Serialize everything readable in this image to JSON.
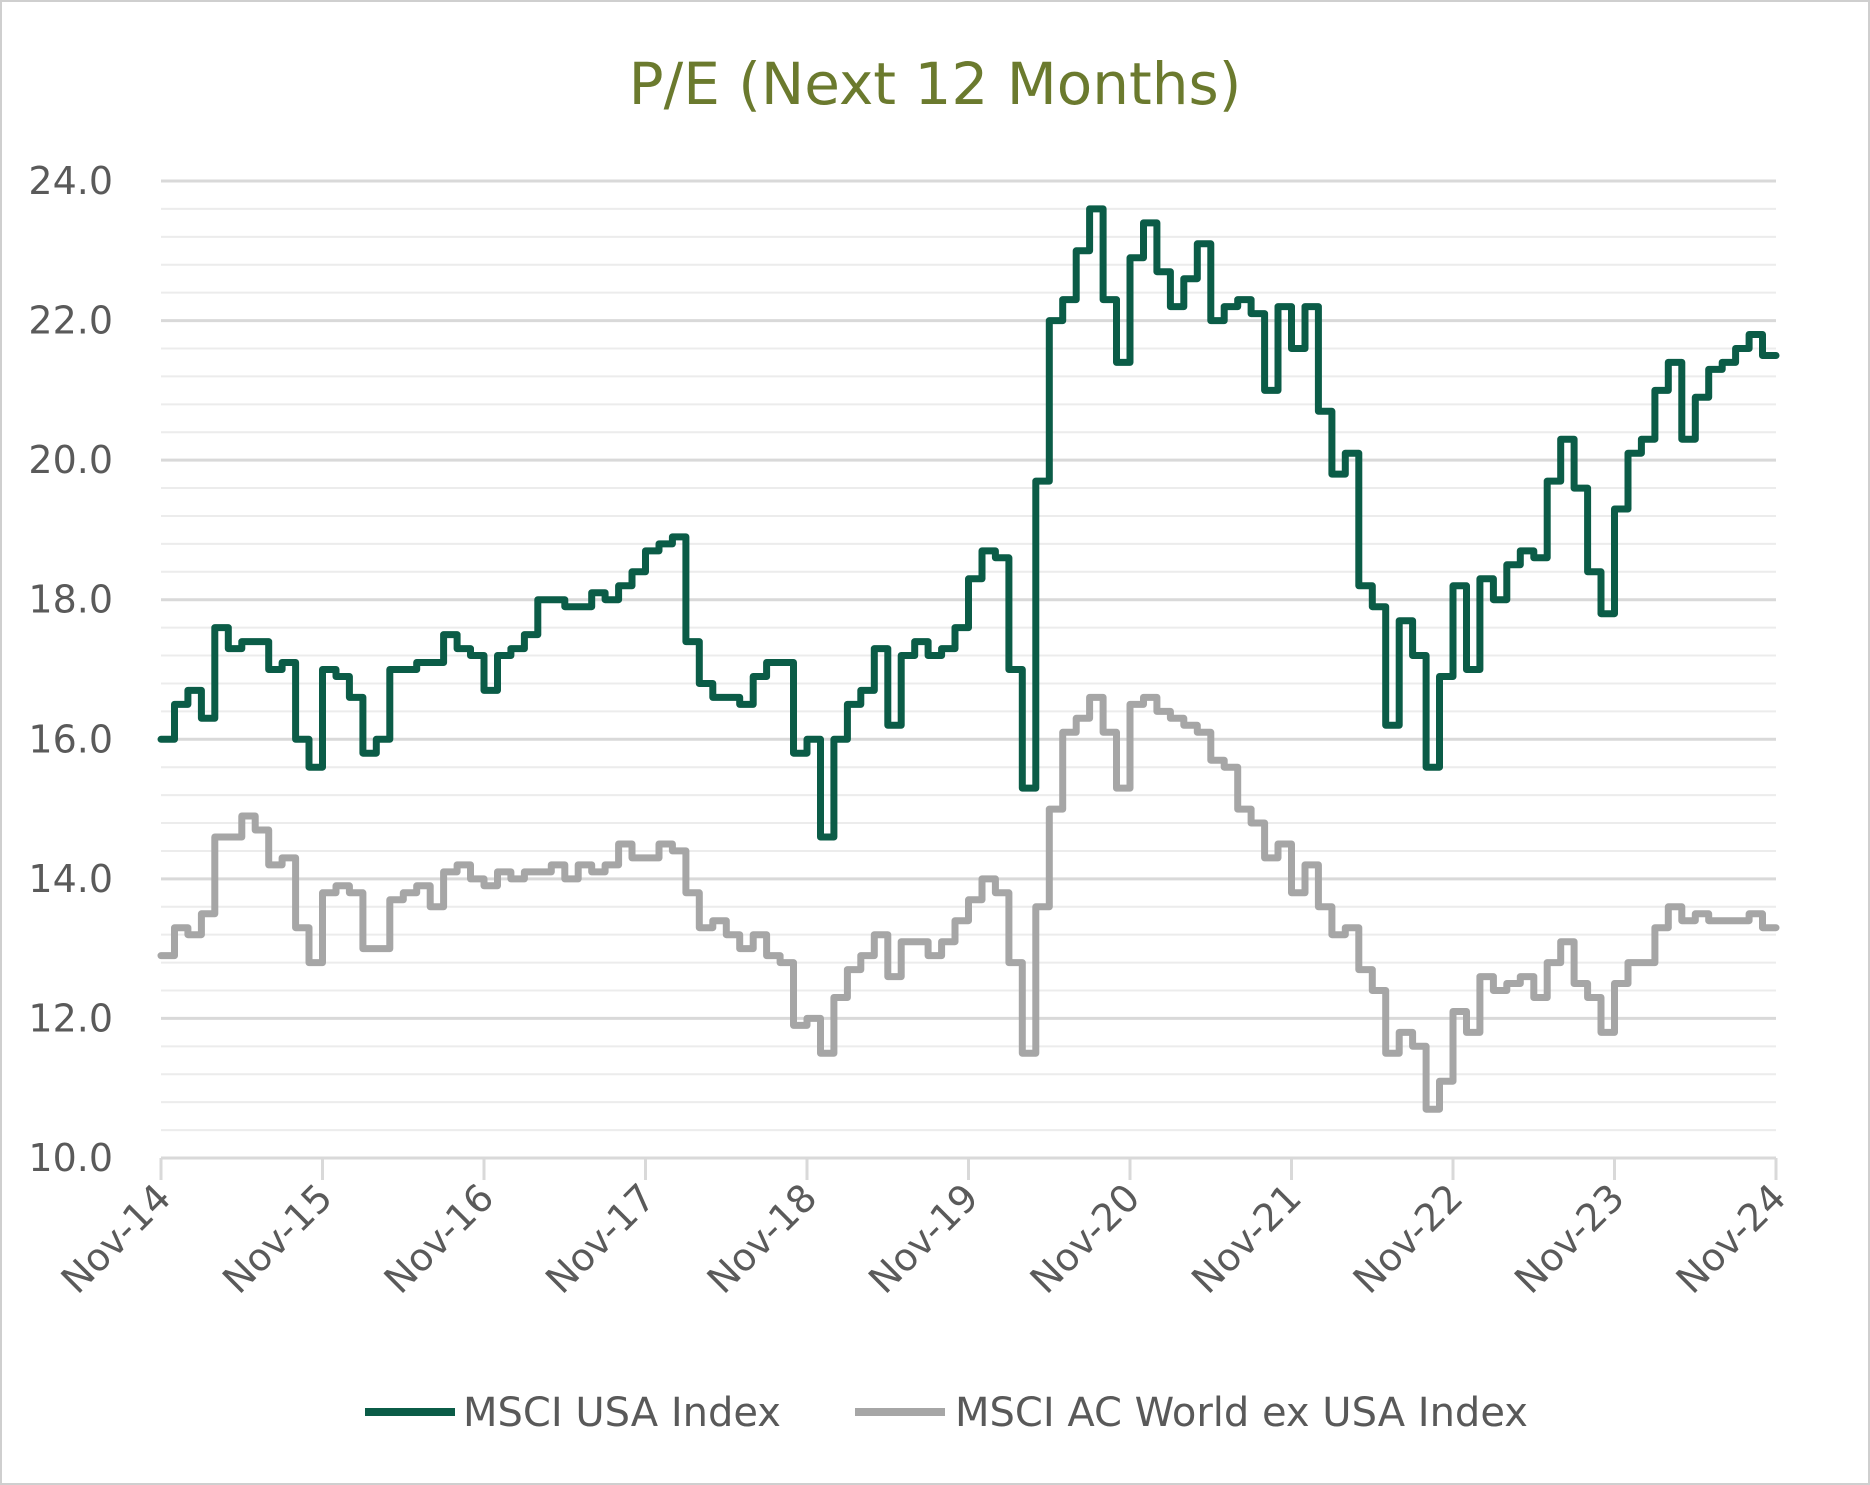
{
  "chart_data": {
    "type": "line",
    "title": "P/E (Next 12 Months)",
    "xlabel": "",
    "ylabel": "",
    "ylim": [
      10.0,
      24.0
    ],
    "xlim": [
      "2014-11",
      "2024-11"
    ],
    "x_tick_labels": [
      "Nov-14",
      "Nov-15",
      "Nov-16",
      "Nov-17",
      "Nov-18",
      "Nov-19",
      "Nov-20",
      "Nov-21",
      "Nov-22",
      "Nov-23",
      "Nov-24"
    ],
    "y_tick_labels": [
      "24.0",
      "22.0",
      "20.0",
      "18.0",
      "16.0",
      "14.0",
      "12.0",
      "10.0"
    ],
    "y_ticks": [
      24,
      22,
      20,
      18,
      16,
      14,
      12,
      10
    ],
    "minor_grid_step": 0.4,
    "grid": true,
    "legend_position": "bottom",
    "colors": {
      "usa": "#0b5c47",
      "world": "#a6a6a6",
      "title": "#6b7a2e",
      "grid": "#d9d9d9"
    },
    "series": [
      {
        "name": "MSCI USA Index",
        "color": "#0b5c47",
        "points": [
          [
            "2014-11",
            16.0
          ],
          [
            "2014-12",
            16.5
          ],
          [
            "2015-01",
            16.7
          ],
          [
            "2015-02",
            16.3
          ],
          [
            "2015-03",
            17.6
          ],
          [
            "2015-04",
            17.3
          ],
          [
            "2015-05",
            17.4
          ],
          [
            "2015-06",
            17.4
          ],
          [
            "2015-07",
            17.0
          ],
          [
            "2015-08",
            17.1
          ],
          [
            "2015-09",
            16.0
          ],
          [
            "2015-10",
            15.6
          ],
          [
            "2015-11",
            17.0
          ],
          [
            "2015-12",
            16.9
          ],
          [
            "2016-01",
            16.6
          ],
          [
            "2016-02",
            15.8
          ],
          [
            "2016-03",
            16.0
          ],
          [
            "2016-04",
            17.0
          ],
          [
            "2016-05",
            17.0
          ],
          [
            "2016-06",
            17.1
          ],
          [
            "2016-07",
            17.1
          ],
          [
            "2016-08",
            17.5
          ],
          [
            "2016-09",
            17.3
          ],
          [
            "2016-10",
            17.2
          ],
          [
            "2016-11",
            16.7
          ],
          [
            "2016-12",
            17.2
          ],
          [
            "2017-01",
            17.3
          ],
          [
            "2017-02",
            17.5
          ],
          [
            "2017-03",
            18.0
          ],
          [
            "2017-04",
            18.0
          ],
          [
            "2017-05",
            17.9
          ],
          [
            "2017-06",
            17.9
          ],
          [
            "2017-07",
            18.1
          ],
          [
            "2017-08",
            18.0
          ],
          [
            "2017-09",
            18.2
          ],
          [
            "2017-10",
            18.4
          ],
          [
            "2017-11",
            18.7
          ],
          [
            "2017-12",
            18.8
          ],
          [
            "2018-01",
            18.9
          ],
          [
            "2018-02",
            17.4
          ],
          [
            "2018-03",
            16.8
          ],
          [
            "2018-04",
            16.6
          ],
          [
            "2018-05",
            16.6
          ],
          [
            "2018-06",
            16.5
          ],
          [
            "2018-07",
            16.9
          ],
          [
            "2018-08",
            17.1
          ],
          [
            "2018-09",
            17.1
          ],
          [
            "2018-10",
            15.8
          ],
          [
            "2018-11",
            16.0
          ],
          [
            "2018-12",
            14.6
          ],
          [
            "2019-01",
            16.0
          ],
          [
            "2019-02",
            16.5
          ],
          [
            "2019-03",
            16.7
          ],
          [
            "2019-04",
            17.3
          ],
          [
            "2019-05",
            16.2
          ],
          [
            "2019-06",
            17.2
          ],
          [
            "2019-07",
            17.4
          ],
          [
            "2019-08",
            17.2
          ],
          [
            "2019-09",
            17.3
          ],
          [
            "2019-10",
            17.6
          ],
          [
            "2019-11",
            18.3
          ],
          [
            "2019-12",
            18.7
          ],
          [
            "2020-01",
            18.6
          ],
          [
            "2020-02",
            17.0
          ],
          [
            "2020-03",
            15.3
          ],
          [
            "2020-04",
            19.7
          ],
          [
            "2020-05",
            22.0
          ],
          [
            "2020-06",
            22.3
          ],
          [
            "2020-07",
            23.0
          ],
          [
            "2020-08",
            23.6
          ],
          [
            "2020-09",
            22.3
          ],
          [
            "2020-10",
            21.4
          ],
          [
            "2020-11",
            22.9
          ],
          [
            "2020-12",
            23.4
          ],
          [
            "2021-01",
            22.7
          ],
          [
            "2021-02",
            22.2
          ],
          [
            "2021-03",
            22.6
          ],
          [
            "2021-04",
            23.1
          ],
          [
            "2021-05",
            22.0
          ],
          [
            "2021-06",
            22.2
          ],
          [
            "2021-07",
            22.3
          ],
          [
            "2021-08",
            22.1
          ],
          [
            "2021-09",
            21.0
          ],
          [
            "2021-10",
            22.2
          ],
          [
            "2021-11",
            21.6
          ],
          [
            "2021-12",
            22.2
          ],
          [
            "2022-01",
            20.7
          ],
          [
            "2022-02",
            19.8
          ],
          [
            "2022-03",
            20.1
          ],
          [
            "2022-04",
            18.2
          ],
          [
            "2022-05",
            17.9
          ],
          [
            "2022-06",
            16.2
          ],
          [
            "2022-07",
            17.7
          ],
          [
            "2022-08",
            17.2
          ],
          [
            "2022-09",
            15.6
          ],
          [
            "2022-10",
            16.9
          ],
          [
            "2022-11",
            18.2
          ],
          [
            "2022-12",
            17.0
          ],
          [
            "2023-01",
            18.3
          ],
          [
            "2023-02",
            18.0
          ],
          [
            "2023-03",
            18.5
          ],
          [
            "2023-04",
            18.7
          ],
          [
            "2023-05",
            18.6
          ],
          [
            "2023-06",
            19.7
          ],
          [
            "2023-07",
            20.3
          ],
          [
            "2023-08",
            19.6
          ],
          [
            "2023-09",
            18.4
          ],
          [
            "2023-10",
            17.8
          ],
          [
            "2023-11",
            19.3
          ],
          [
            "2023-12",
            20.1
          ],
          [
            "2024-01",
            20.3
          ],
          [
            "2024-02",
            21.0
          ],
          [
            "2024-03",
            21.4
          ],
          [
            "2024-04",
            20.3
          ],
          [
            "2024-05",
            20.9
          ],
          [
            "2024-06",
            21.3
          ],
          [
            "2024-07",
            21.4
          ],
          [
            "2024-08",
            21.6
          ],
          [
            "2024-09",
            21.8
          ],
          [
            "2024-10",
            21.5
          ],
          [
            "2024-11",
            21.5
          ]
        ]
      },
      {
        "name": "MSCI AC World ex USA Index",
        "color": "#a6a6a6",
        "points": [
          [
            "2014-11",
            12.9
          ],
          [
            "2014-12",
            13.3
          ],
          [
            "2015-01",
            13.2
          ],
          [
            "2015-02",
            13.5
          ],
          [
            "2015-03",
            14.6
          ],
          [
            "2015-04",
            14.6
          ],
          [
            "2015-05",
            14.9
          ],
          [
            "2015-06",
            14.7
          ],
          [
            "2015-07",
            14.2
          ],
          [
            "2015-08",
            14.3
          ],
          [
            "2015-09",
            13.3
          ],
          [
            "2015-10",
            12.8
          ],
          [
            "2015-11",
            13.8
          ],
          [
            "2015-12",
            13.9
          ],
          [
            "2016-01",
            13.8
          ],
          [
            "2016-02",
            13.0
          ],
          [
            "2016-03",
            13.0
          ],
          [
            "2016-04",
            13.7
          ],
          [
            "2016-05",
            13.8
          ],
          [
            "2016-06",
            13.9
          ],
          [
            "2016-07",
            13.6
          ],
          [
            "2016-08",
            14.1
          ],
          [
            "2016-09",
            14.2
          ],
          [
            "2016-10",
            14.0
          ],
          [
            "2016-11",
            13.9
          ],
          [
            "2016-12",
            14.1
          ],
          [
            "2017-01",
            14.0
          ],
          [
            "2017-02",
            14.1
          ],
          [
            "2017-03",
            14.1
          ],
          [
            "2017-04",
            14.2
          ],
          [
            "2017-05",
            14.0
          ],
          [
            "2017-06",
            14.2
          ],
          [
            "2017-07",
            14.1
          ],
          [
            "2017-08",
            14.2
          ],
          [
            "2017-09",
            14.5
          ],
          [
            "2017-10",
            14.3
          ],
          [
            "2017-11",
            14.3
          ],
          [
            "2017-12",
            14.5
          ],
          [
            "2018-01",
            14.4
          ],
          [
            "2018-02",
            13.8
          ],
          [
            "2018-03",
            13.3
          ],
          [
            "2018-04",
            13.4
          ],
          [
            "2018-05",
            13.2
          ],
          [
            "2018-06",
            13.0
          ],
          [
            "2018-07",
            13.2
          ],
          [
            "2018-08",
            12.9
          ],
          [
            "2018-09",
            12.8
          ],
          [
            "2018-10",
            11.9
          ],
          [
            "2018-11",
            12.0
          ],
          [
            "2018-12",
            11.5
          ],
          [
            "2019-01",
            12.3
          ],
          [
            "2019-02",
            12.7
          ],
          [
            "2019-03",
            12.9
          ],
          [
            "2019-04",
            13.2
          ],
          [
            "2019-05",
            12.6
          ],
          [
            "2019-06",
            13.1
          ],
          [
            "2019-07",
            13.1
          ],
          [
            "2019-08",
            12.9
          ],
          [
            "2019-09",
            13.1
          ],
          [
            "2019-10",
            13.4
          ],
          [
            "2019-11",
            13.7
          ],
          [
            "2019-12",
            14.0
          ],
          [
            "2020-01",
            13.8
          ],
          [
            "2020-02",
            12.8
          ],
          [
            "2020-03",
            11.5
          ],
          [
            "2020-04",
            13.6
          ],
          [
            "2020-05",
            15.0
          ],
          [
            "2020-06",
            16.1
          ],
          [
            "2020-07",
            16.3
          ],
          [
            "2020-08",
            16.6
          ],
          [
            "2020-09",
            16.1
          ],
          [
            "2020-10",
            15.3
          ],
          [
            "2020-11",
            16.5
          ],
          [
            "2020-12",
            16.6
          ],
          [
            "2021-01",
            16.4
          ],
          [
            "2021-02",
            16.3
          ],
          [
            "2021-03",
            16.2
          ],
          [
            "2021-04",
            16.1
          ],
          [
            "2021-05",
            15.7
          ],
          [
            "2021-06",
            15.6
          ],
          [
            "2021-07",
            15.0
          ],
          [
            "2021-08",
            14.8
          ],
          [
            "2021-09",
            14.3
          ],
          [
            "2021-10",
            14.5
          ],
          [
            "2021-11",
            13.8
          ],
          [
            "2021-12",
            14.2
          ],
          [
            "2022-01",
            13.6
          ],
          [
            "2022-02",
            13.2
          ],
          [
            "2022-03",
            13.3
          ],
          [
            "2022-04",
            12.7
          ],
          [
            "2022-05",
            12.4
          ],
          [
            "2022-06",
            11.5
          ],
          [
            "2022-07",
            11.8
          ],
          [
            "2022-08",
            11.6
          ],
          [
            "2022-09",
            10.7
          ],
          [
            "2022-10",
            11.1
          ],
          [
            "2022-11",
            12.1
          ],
          [
            "2022-12",
            11.8
          ],
          [
            "2023-01",
            12.6
          ],
          [
            "2023-02",
            12.4
          ],
          [
            "2023-03",
            12.5
          ],
          [
            "2023-04",
            12.6
          ],
          [
            "2023-05",
            12.3
          ],
          [
            "2023-06",
            12.8
          ],
          [
            "2023-07",
            13.1
          ],
          [
            "2023-08",
            12.5
          ],
          [
            "2023-09",
            12.3
          ],
          [
            "2023-10",
            11.8
          ],
          [
            "2023-11",
            12.5
          ],
          [
            "2023-12",
            12.8
          ],
          [
            "2024-01",
            12.8
          ],
          [
            "2024-02",
            13.3
          ],
          [
            "2024-03",
            13.6
          ],
          [
            "2024-04",
            13.4
          ],
          [
            "2024-05",
            13.5
          ],
          [
            "2024-06",
            13.4
          ],
          [
            "2024-07",
            13.4
          ],
          [
            "2024-08",
            13.4
          ],
          [
            "2024-09",
            13.5
          ],
          [
            "2024-10",
            13.3
          ],
          [
            "2024-11",
            13.3
          ]
        ]
      }
    ]
  }
}
